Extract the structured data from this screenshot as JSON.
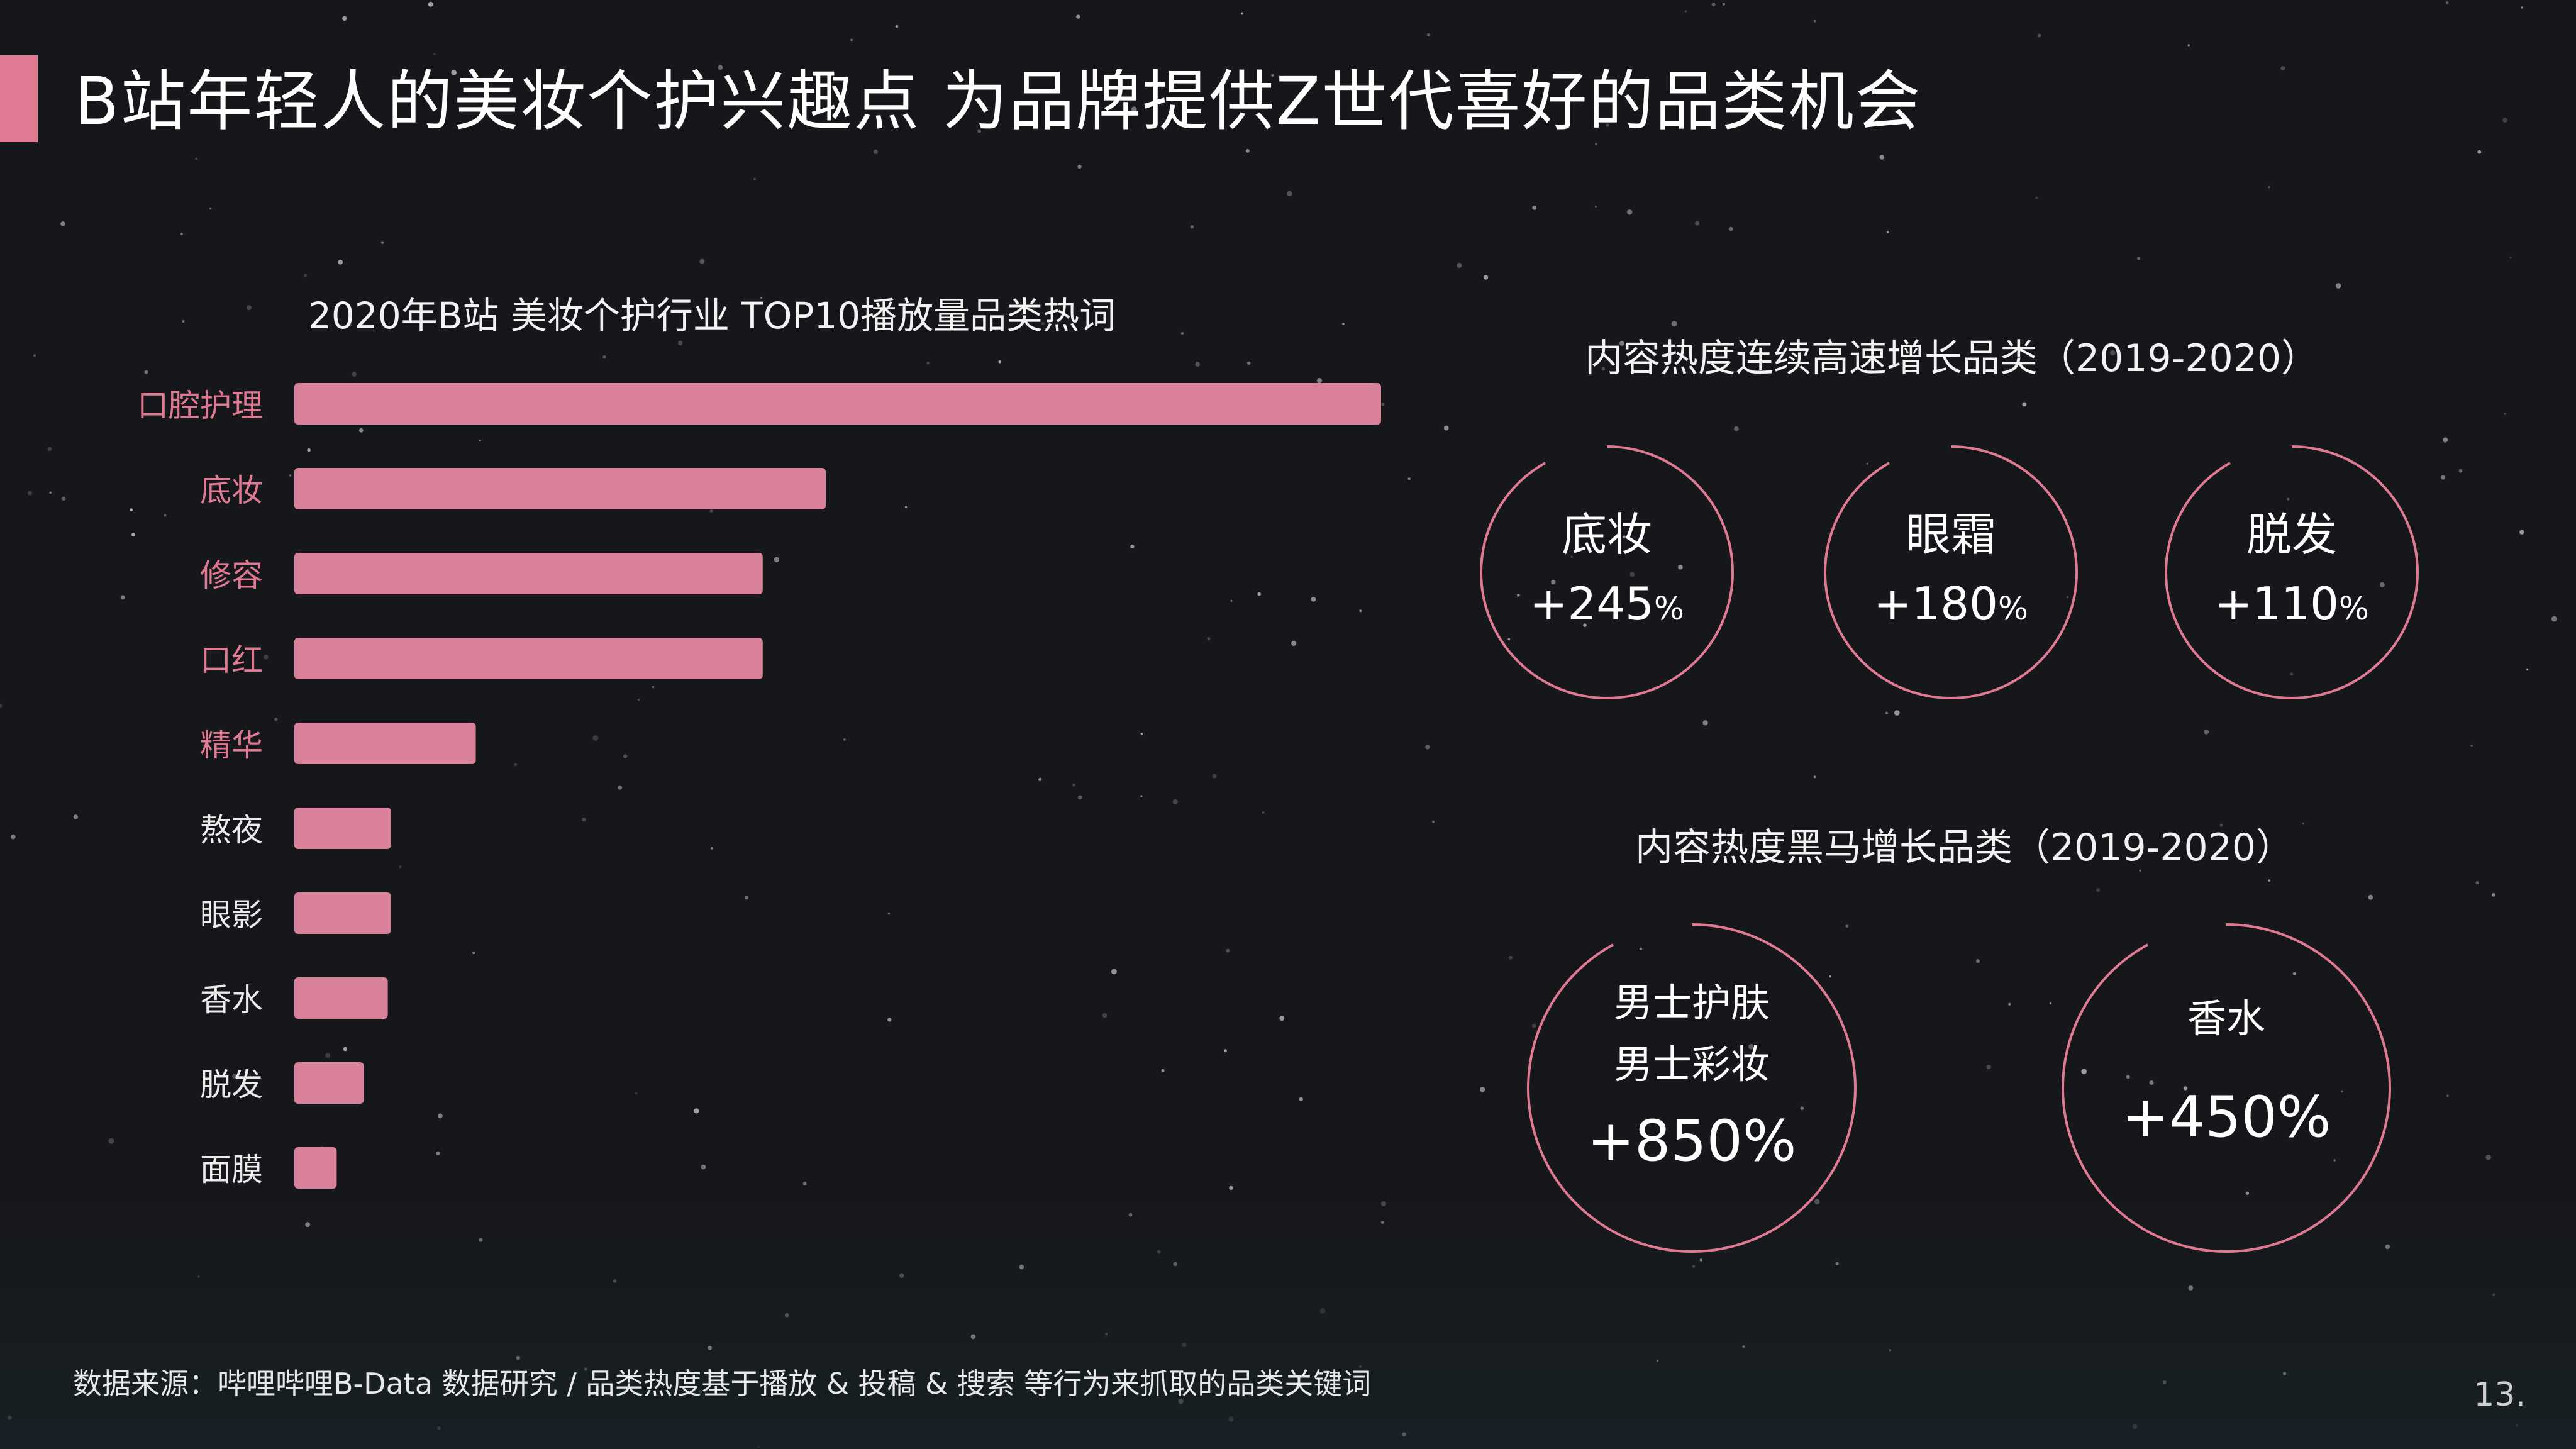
{
  "page": {
    "title": "B站年轻人的美妆个护兴趣点  为品牌提供Z世代喜好的品类机会",
    "page_number": "13.",
    "source_note": "数据来源：哔哩哔哩B-Data 数据研究 / 品类热度基于播放 & 投稿 & 搜索 等行为来抓取的品类关键词"
  },
  "colors": {
    "accent": "#e07a93",
    "bar": "#d9819a",
    "label_highlight": "#e07a93",
    "label_normal": "#ececec",
    "background": "#16171b"
  },
  "chart_data": {
    "type": "bar",
    "orientation": "horizontal",
    "title": "2020年B站 美妆个护行业 TOP10播放量品类热词",
    "categories": [
      "口腔护理",
      "底妆",
      "修容",
      "口红",
      "精华",
      "熬夜",
      "眼影",
      "香水",
      "脱发",
      "面膜"
    ],
    "values": [
      100,
      48.9,
      43.1,
      43.1,
      16.7,
      8.9,
      8.9,
      8.6,
      6.4,
      3.9
    ],
    "highlighted_count": 5,
    "xlim": [
      0,
      100
    ],
    "grid": false,
    "legend": "none"
  },
  "growth_section": {
    "title": "内容热度连续高速增长品类（2019-2020）",
    "items": [
      {
        "name": "底妆",
        "value": "+245",
        "unit": "%"
      },
      {
        "name": "眼霜",
        "value": "+180",
        "unit": "%"
      },
      {
        "name": "脱发",
        "value": "+110",
        "unit": "%"
      }
    ]
  },
  "darkhorse_section": {
    "title": "内容热度黑马增长品类（2019-2020）",
    "items": [
      {
        "line1": "男士护肤",
        "line2": "男士彩妆",
        "value": "+850%"
      },
      {
        "line1": "香水",
        "value": "+450%"
      }
    ]
  }
}
